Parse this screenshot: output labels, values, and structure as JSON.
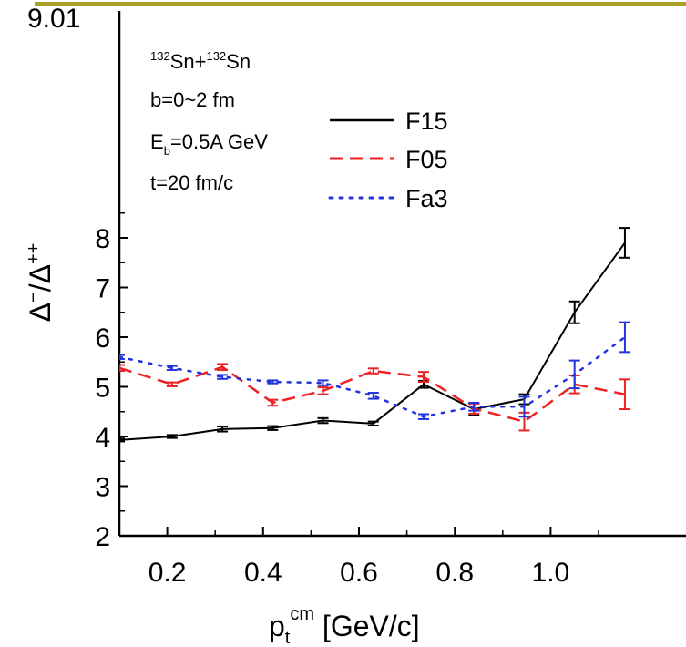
{
  "header_bar_color": "#a8a02a",
  "chart_data": {
    "type": "line",
    "title": "",
    "xlabel": {
      "main": "p",
      "sub": "t",
      "sup": "cm",
      "unit": " [GeV/c]"
    },
    "ylabel": "Δ⁻/Δ⁺⁺",
    "xlim": [
      0.1,
      1.15
    ],
    "ylim": [
      2,
      9
    ],
    "x_ticks": [
      "0.2",
      "0.4",
      "0.6",
      "0.8",
      "1.0"
    ],
    "y_ticks": [
      "2",
      "3",
      "4",
      "5",
      "6",
      "7",
      "8"
    ],
    "top_tick_partial": "9.01",
    "grid": false,
    "legend_placement": "center-top",
    "annotations": {
      "system": {
        "a1": "132",
        "s1": "Sn+",
        "a2": "132",
        "s2": "Sn"
      },
      "impact": "b=0~2 fm",
      "energy": {
        "pre": "E",
        "sub": "b",
        "post": "=0.5A GeV"
      },
      "time": "t=20 fm/c"
    },
    "series": [
      {
        "name": "F15",
        "color": "#000000",
        "dash": "solid",
        "x": [
          0.1,
          0.21,
          0.315,
          0.42,
          0.525,
          0.63,
          0.735,
          0.84,
          0.945,
          1.05,
          1.155
        ],
        "y": [
          3.93,
          4.0,
          4.15,
          4.17,
          4.32,
          4.26,
          5.05,
          4.55,
          4.75,
          6.5,
          7.9
        ],
        "err": [
          0.03,
          0.03,
          0.05,
          0.04,
          0.05,
          0.04,
          0.07,
          0.12,
          0.1,
          0.22,
          0.3
        ]
      },
      {
        "name": "F05",
        "color": "#ee2222",
        "dash": "dashed",
        "x": [
          0.1,
          0.21,
          0.315,
          0.42,
          0.525,
          0.63,
          0.735,
          0.84,
          0.945,
          1.05,
          1.155
        ],
        "y": [
          5.38,
          5.05,
          5.4,
          4.68,
          4.92,
          5.32,
          5.2,
          4.56,
          4.3,
          5.05,
          4.85
        ],
        "err": [
          0.06,
          0.04,
          0.06,
          0.06,
          0.07,
          0.05,
          0.1,
          0.1,
          0.18,
          0.18,
          0.3
        ]
      },
      {
        "name": "Fa3",
        "color": "#2233dd",
        "dash": "dotted",
        "x": [
          0.1,
          0.21,
          0.315,
          0.42,
          0.525,
          0.63,
          0.735,
          0.84,
          0.945,
          1.05,
          1.155
        ],
        "y": [
          5.6,
          5.38,
          5.2,
          5.1,
          5.08,
          4.82,
          4.4,
          4.6,
          4.6,
          5.25,
          6.0
        ],
        "err": [
          0.04,
          0.04,
          0.04,
          0.03,
          0.05,
          0.06,
          0.05,
          0.08,
          0.2,
          0.28,
          0.3
        ]
      }
    ]
  }
}
